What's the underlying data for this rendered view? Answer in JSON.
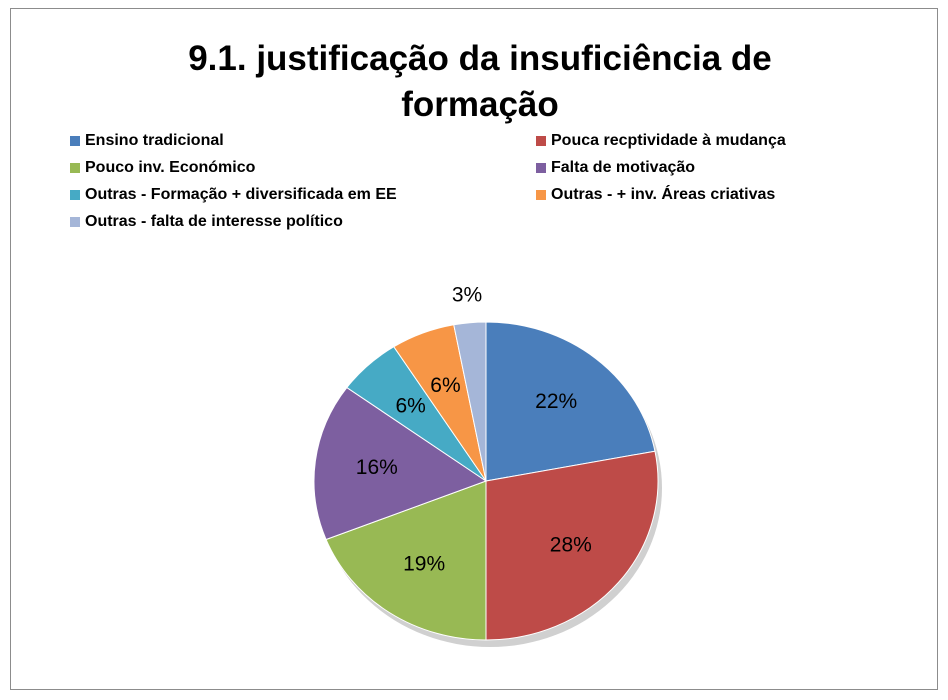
{
  "chart_data": {
    "type": "pie",
    "title": "9.1. justificação da insuficiência de formação",
    "categories": [
      "Ensino tradicional",
      "Pouca recptividade à mudança",
      "Pouco inv. Económico",
      "Falta de motivação",
      "Outras - Formação + diversificada em EE",
      "Outras - + inv. Áreas criativas",
      "Outras - falta de interesse político"
    ],
    "values": [
      22,
      28,
      19,
      16,
      6,
      6,
      3
    ],
    "value_labels": [
      "22%",
      "28%",
      "19%",
      "16%",
      "6%",
      "6%",
      "3%"
    ],
    "colors": [
      "#4a7ebb",
      "#be4b48",
      "#98b954",
      "#7d5fa0",
      "#46aac5",
      "#f79646",
      "#a5b6d8"
    ],
    "legend": "top"
  }
}
